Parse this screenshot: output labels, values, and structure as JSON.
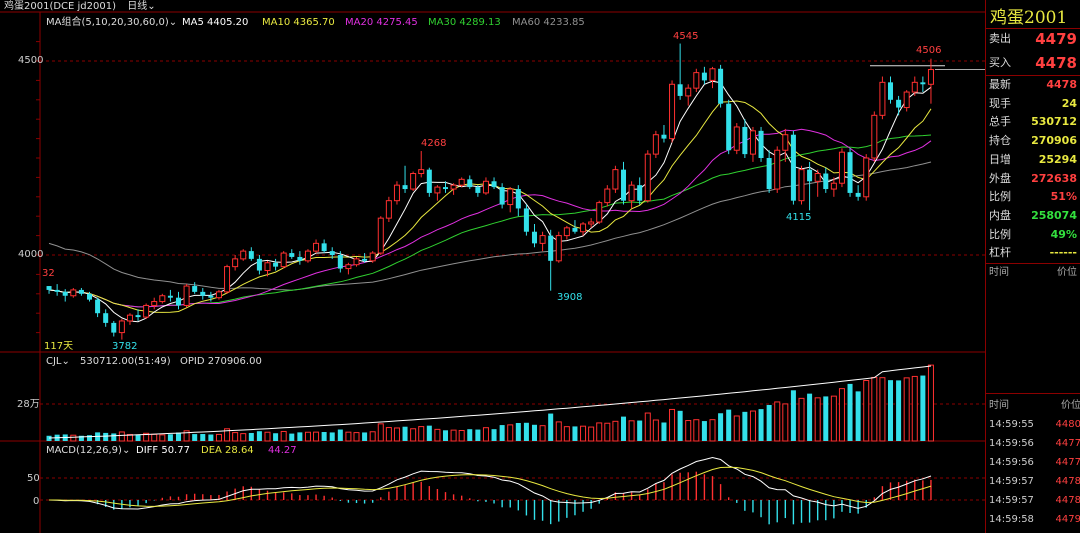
{
  "header": {
    "title": "鸡蛋2001(DCE jd2001)",
    "period": "日线"
  },
  "colors": {
    "up": "#ff3030",
    "down": "#33e0ea",
    "ma5": "#ffffff",
    "ma10": "#e8e840",
    "ma20": "#e030e0",
    "ma30": "#30d030",
    "ma60": "#909090",
    "grid": "#8b0000"
  },
  "ma_legend": {
    "group": "MA组合(5,10,20,30,60,0)",
    "ma5": "MA5 4405.20",
    "ma10": "MA10 4365.70",
    "ma20": "MA20 4275.45",
    "ma30": "MA30 4289.13",
    "ma60": "MA60 4233.85"
  },
  "price_axis": {
    "label_4500": "4500",
    "label_4000": "4000"
  },
  "annotations": {
    "high_4545": "4545",
    "high_4506": "4506",
    "high_4268": "4268",
    "low_3908": "3908",
    "low_4115": "4115",
    "low_3782": "3782",
    "left_32": "32",
    "days": "117天"
  },
  "volume_panel": {
    "legend_name": "CJL",
    "legend_value": "530712.00(51:49)",
    "opid": "OPID 270906.00",
    "axis_label": "28万"
  },
  "macd_panel": {
    "legend_name": "MACD(12,26,9)",
    "diff": "DIFF 50.77",
    "dea": "DEA 28.64",
    "macd": "44.27",
    "axis_50": "50",
    "axis_0": "0"
  },
  "quote": {
    "name": "鸡蛋2001",
    "sell_label": "卖出",
    "sell_price": "4479",
    "buy_label": "买入",
    "buy_price": "4478",
    "rows": [
      {
        "label": "最新",
        "value": "4478",
        "color": "#ff4040"
      },
      {
        "label": "现手",
        "value": "24",
        "color": "#e8e840"
      },
      {
        "label": "总手",
        "value": "530712",
        "color": "#e8e840"
      },
      {
        "label": "持仓",
        "value": "270906",
        "color": "#e8e840"
      },
      {
        "label": "日增",
        "value": "25294",
        "color": "#e8e840"
      },
      {
        "label": "外盘",
        "value": "272638",
        "color": "#ff4040"
      },
      {
        "label": "比例",
        "value": "51%",
        "color": "#ff4040"
      },
      {
        "label": "内盘",
        "value": "258074",
        "color": "#33e03e"
      },
      {
        "label": "比例",
        "value": "49%",
        "color": "#33e03e"
      },
      {
        "label": "杠杆",
        "value": "------",
        "color": "#e8e840"
      }
    ],
    "col_time": "时间",
    "col_price": "价位"
  },
  "ticks": {
    "col_time": "时间",
    "col_price": "价位",
    "rows": [
      {
        "time": "14:59:55",
        "price": "4480"
      },
      {
        "time": "14:59:56",
        "price": "4477"
      },
      {
        "time": "14:59:56",
        "price": "4477"
      },
      {
        "time": "14:59:57",
        "price": "4478"
      },
      {
        "time": "14:59:57",
        "price": "4478"
      },
      {
        "time": "14:59:58",
        "price": "4479"
      }
    ]
  },
  "chart_data": {
    "type": "candlestick",
    "y_range": [
      3700,
      4600
    ],
    "candles": [
      [
        3920,
        3920,
        3900,
        3910
      ],
      [
        3910,
        3925,
        3895,
        3905
      ],
      [
        3905,
        3912,
        3880,
        3895
      ],
      [
        3895,
        3915,
        3890,
        3910
      ],
      [
        3910,
        3915,
        3895,
        3900
      ],
      [
        3900,
        3905,
        3880,
        3885
      ],
      [
        3885,
        3890,
        3840,
        3850
      ],
      [
        3850,
        3860,
        3815,
        3825
      ],
      [
        3825,
        3830,
        3790,
        3800
      ],
      [
        3800,
        3835,
        3782,
        3830
      ],
      [
        3830,
        3850,
        3820,
        3845
      ],
      [
        3845,
        3860,
        3830,
        3840
      ],
      [
        3840,
        3875,
        3835,
        3870
      ],
      [
        3870,
        3890,
        3860,
        3880
      ],
      [
        3880,
        3900,
        3875,
        3895
      ],
      [
        3895,
        3910,
        3880,
        3890
      ],
      [
        3890,
        3905,
        3860,
        3870
      ],
      [
        3870,
        3925,
        3865,
        3920
      ],
      [
        3920,
        3930,
        3900,
        3905
      ],
      [
        3905,
        3915,
        3885,
        3895
      ],
      [
        3895,
        3905,
        3880,
        3890
      ],
      [
        3890,
        3910,
        3885,
        3905
      ],
      [
        3905,
        3975,
        3900,
        3970
      ],
      [
        3970,
        4000,
        3960,
        3990
      ],
      [
        3990,
        4015,
        3985,
        4010
      ],
      [
        4010,
        4020,
        3985,
        3990
      ],
      [
        3990,
        4000,
        3950,
        3960
      ],
      [
        3960,
        3985,
        3945,
        3980
      ],
      [
        3980,
        3990,
        3960,
        3970
      ],
      [
        3970,
        4010,
        3965,
        4005
      ],
      [
        4005,
        4015,
        3990,
        3995
      ],
      [
        3995,
        4010,
        3975,
        3985
      ],
      [
        3985,
        4015,
        3980,
        4010
      ],
      [
        4010,
        4040,
        4005,
        4030
      ],
      [
        4030,
        4040,
        4005,
        4010
      ],
      [
        4010,
        4020,
        3990,
        4000
      ],
      [
        4000,
        4010,
        3955,
        3965
      ],
      [
        3965,
        3980,
        3950,
        3975
      ],
      [
        3975,
        3995,
        3970,
        3990
      ],
      [
        3990,
        4005,
        3980,
        3985
      ],
      [
        3985,
        4010,
        3980,
        4005
      ],
      [
        4005,
        4100,
        4000,
        4095
      ],
      [
        4095,
        4150,
        4085,
        4140
      ],
      [
        4140,
        4190,
        4130,
        4180
      ],
      [
        4180,
        4230,
        4160,
        4170
      ],
      [
        4170,
        4215,
        4165,
        4210
      ],
      [
        4210,
        4268,
        4200,
        4220
      ],
      [
        4220,
        4225,
        4150,
        4160
      ],
      [
        4160,
        4180,
        4140,
        4175
      ],
      [
        4175,
        4190,
        4160,
        4170
      ],
      [
        4170,
        4185,
        4155,
        4180
      ],
      [
        4180,
        4200,
        4175,
        4195
      ],
      [
        4195,
        4205,
        4170,
        4175
      ],
      [
        4175,
        4180,
        4150,
        4160
      ],
      [
        4160,
        4200,
        4155,
        4190
      ],
      [
        4190,
        4200,
        4170,
        4175
      ],
      [
        4175,
        4185,
        4120,
        4130
      ],
      [
        4130,
        4175,
        4110,
        4170
      ],
      [
        4170,
        4180,
        4100,
        4120
      ],
      [
        4120,
        4130,
        4050,
        4060
      ],
      [
        4060,
        4080,
        4020,
        4030
      ],
      [
        4030,
        4060,
        4010,
        4050
      ],
      [
        4050,
        4065,
        3908,
        3985
      ],
      [
        3985,
        4060,
        3980,
        4050
      ],
      [
        4050,
        4075,
        4040,
        4070
      ],
      [
        4070,
        4090,
        4055,
        4060
      ],
      [
        4060,
        4085,
        4050,
        4080
      ],
      [
        4080,
        4095,
        4070,
        4085
      ],
      [
        4085,
        4140,
        4080,
        4135
      ],
      [
        4135,
        4180,
        4125,
        4170
      ],
      [
        4170,
        4230,
        4160,
        4220
      ],
      [
        4220,
        4240,
        4130,
        4140
      ],
      [
        4140,
        4190,
        4120,
        4180
      ],
      [
        4180,
        4200,
        4130,
        4140
      ],
      [
        4140,
        4270,
        4135,
        4260
      ],
      [
        4260,
        4320,
        4250,
        4310
      ],
      [
        4310,
        4335,
        4290,
        4300
      ],
      [
        4300,
        4450,
        4290,
        4440
      ],
      [
        4440,
        4545,
        4400,
        4410
      ],
      [
        4410,
        4440,
        4385,
        4430
      ],
      [
        4430,
        4480,
        4420,
        4470
      ],
      [
        4470,
        4485,
        4440,
        4450
      ],
      [
        4450,
        4485,
        4430,
        4480
      ],
      [
        4480,
        4490,
        4380,
        4390
      ],
      [
        4390,
        4400,
        4260,
        4270
      ],
      [
        4270,
        4340,
        4260,
        4330
      ],
      [
        4330,
        4350,
        4250,
        4260
      ],
      [
        4260,
        4330,
        4240,
        4320
      ],
      [
        4320,
        4330,
        4240,
        4250
      ],
      [
        4250,
        4270,
        4160,
        4170
      ],
      [
        4170,
        4280,
        4160,
        4270
      ],
      [
        4270,
        4325,
        4240,
        4310
      ],
      [
        4310,
        4320,
        4130,
        4140
      ],
      [
        4140,
        4230,
        4130,
        4220
      ],
      [
        4220,
        4240,
        4115,
        4190
      ],
      [
        4190,
        4220,
        4150,
        4210
      ],
      [
        4210,
        4225,
        4160,
        4170
      ],
      [
        4170,
        4200,
        4150,
        4185
      ],
      [
        4185,
        4275,
        4175,
        4265
      ],
      [
        4265,
        4275,
        4150,
        4160
      ],
      [
        4160,
        4180,
        4140,
        4150
      ],
      [
        4150,
        4260,
        4140,
        4250
      ],
      [
        4250,
        4370,
        4240,
        4360
      ],
      [
        4360,
        4460,
        4350,
        4445
      ],
      [
        4445,
        4460,
        4390,
        4400
      ],
      [
        4400,
        4410,
        4360,
        4380
      ],
      [
        4380,
        4425,
        4370,
        4420
      ],
      [
        4420,
        4460,
        4410,
        4445
      ],
      [
        4445,
        4460,
        4420,
        4440
      ],
      [
        4440,
        4506,
        4390,
        4478
      ]
    ]
  }
}
